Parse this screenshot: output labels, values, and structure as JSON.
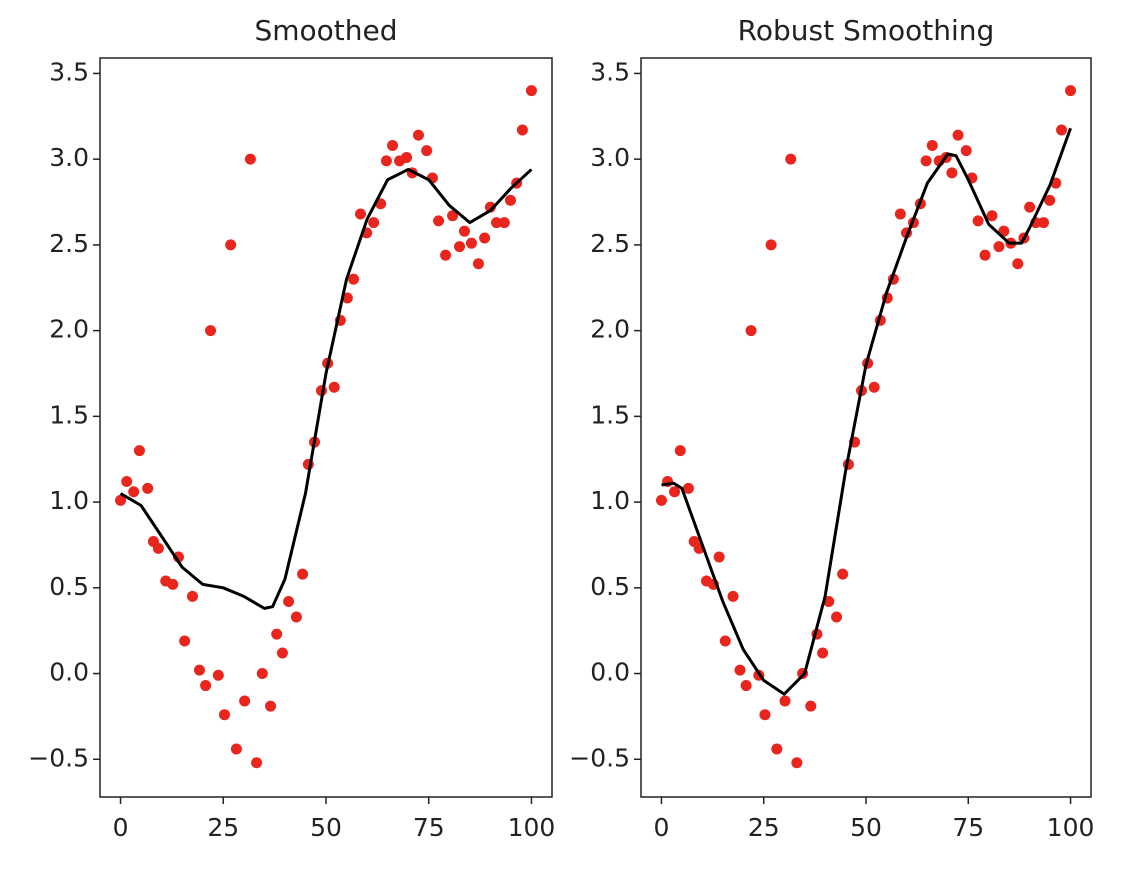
{
  "chart_data": [
    {
      "type": "scatter",
      "title": "Smoothed",
      "xlim": [
        -5,
        105
      ],
      "ylim": [
        -0.72,
        3.59
      ],
      "xticks": [
        0,
        25,
        50,
        75,
        100
      ],
      "yticks": [
        {
          "value": -0.5,
          "label": "−0.5"
        },
        {
          "value": 0,
          "label": "0.0"
        },
        0.5,
        {
          "value": 1,
          "label": "1.0"
        },
        1.5,
        {
          "value": 2,
          "label": "2.0"
        },
        2.5,
        {
          "value": 3,
          "label": "3.0"
        },
        3.5
      ],
      "series": [
        {
          "kind": "scatter",
          "color": "#e8261e",
          "x": [
            0,
            1.5,
            3.2,
            4.6,
            6.6,
            8,
            9.2,
            11,
            12.7,
            14.1,
            15.6,
            17.5,
            19.2,
            20.7,
            21.9,
            23.8,
            25.3,
            26.8,
            28.2,
            30.2,
            31.6,
            33.1,
            34.5,
            36.5,
            38,
            39.4,
            40.9,
            42.8,
            44.3,
            45.7,
            47.2,
            48.9,
            50.4,
            52,
            53.5,
            55.2,
            56.7,
            58.4,
            59.9,
            61.6,
            63.3,
            64.7,
            66.2,
            67.9,
            69.6,
            71,
            72.5,
            74.5,
            75.9,
            77.4,
            79.1,
            80.8,
            82.5,
            83.7,
            85.4,
            87.1,
            88.6,
            90,
            91.5,
            93.4,
            94.9,
            96.4,
            97.8,
            100
          ],
          "values": [
            1.01,
            1.12,
            1.06,
            1.3,
            1.08,
            0.77,
            0.73,
            0.54,
            0.52,
            0.68,
            0.19,
            0.45,
            0.02,
            -0.07,
            2.0,
            -0.01,
            -0.24,
            2.5,
            -0.44,
            -0.16,
            3.0,
            -0.52,
            0.0,
            -0.19,
            0.23,
            0.12,
            0.42,
            0.33,
            0.58,
            1.22,
            1.35,
            1.65,
            1.81,
            1.67,
            2.06,
            2.19,
            2.3,
            2.68,
            2.57,
            2.63,
            2.74,
            2.99,
            3.08,
            2.99,
            3.01,
            2.92,
            3.14,
            3.05,
            2.89,
            2.64,
            2.44,
            2.67,
            2.49,
            2.58,
            2.51,
            2.39,
            2.54,
            2.72,
            2.63,
            2.63,
            2.76,
            2.86,
            3.17,
            3.4
          ]
        },
        {
          "kind": "line",
          "color": "#000000",
          "x": [
            0,
            5,
            10,
            15,
            20,
            25,
            30,
            35,
            37,
            40,
            45,
            50,
            55,
            60,
            65,
            70,
            75,
            80,
            85,
            90,
            95,
            100
          ],
          "values": [
            1.05,
            0.98,
            0.8,
            0.62,
            0.52,
            0.5,
            0.45,
            0.38,
            0.39,
            0.55,
            1.05,
            1.75,
            2.3,
            2.65,
            2.88,
            2.94,
            2.88,
            2.73,
            2.63,
            2.7,
            2.83,
            2.94
          ]
        }
      ]
    },
    {
      "type": "scatter",
      "title": "Robust Smoothing",
      "xlim": [
        -5,
        105
      ],
      "ylim": [
        -0.72,
        3.59
      ],
      "xticks": [
        0,
        25,
        50,
        75,
        100
      ],
      "yticks": [
        {
          "value": -0.5,
          "label": "−0.5"
        },
        {
          "value": 0,
          "label": "0.0"
        },
        0.5,
        {
          "value": 1,
          "label": "1.0"
        },
        1.5,
        {
          "value": 2,
          "label": "2.0"
        },
        2.5,
        {
          "value": 3,
          "label": "3.0"
        },
        3.5
      ],
      "series": [
        {
          "kind": "scatter",
          "color": "#e8261e",
          "x": [
            0,
            1.5,
            3.2,
            4.6,
            6.6,
            8,
            9.2,
            11,
            12.7,
            14.1,
            15.6,
            17.5,
            19.2,
            20.7,
            21.9,
            23.8,
            25.3,
            26.8,
            28.2,
            30.2,
            31.6,
            33.1,
            34.5,
            36.5,
            38,
            39.4,
            40.9,
            42.8,
            44.3,
            45.7,
            47.2,
            48.9,
            50.4,
            52,
            53.5,
            55.2,
            56.7,
            58.4,
            59.9,
            61.6,
            63.3,
            64.7,
            66.2,
            67.9,
            69.6,
            71,
            72.5,
            74.5,
            75.9,
            77.4,
            79.1,
            80.8,
            82.5,
            83.7,
            85.4,
            87.1,
            88.6,
            90,
            91.5,
            93.4,
            94.9,
            96.4,
            97.8,
            100
          ],
          "values": [
            1.01,
            1.12,
            1.06,
            1.3,
            1.08,
            0.77,
            0.73,
            0.54,
            0.52,
            0.68,
            0.19,
            0.45,
            0.02,
            -0.07,
            2.0,
            -0.01,
            -0.24,
            2.5,
            -0.44,
            -0.16,
            3.0,
            -0.52,
            0.0,
            -0.19,
            0.23,
            0.12,
            0.42,
            0.33,
            0.58,
            1.22,
            1.35,
            1.65,
            1.81,
            1.67,
            2.06,
            2.19,
            2.3,
            2.68,
            2.57,
            2.63,
            2.74,
            2.99,
            3.08,
            2.99,
            3.01,
            2.92,
            3.14,
            3.05,
            2.89,
            2.64,
            2.44,
            2.67,
            2.49,
            2.58,
            2.51,
            2.39,
            2.54,
            2.72,
            2.63,
            2.63,
            2.76,
            2.86,
            3.17,
            3.4
          ]
        },
        {
          "kind": "line",
          "color": "#000000",
          "x": [
            0,
            3,
            5,
            10,
            15,
            20,
            25,
            30,
            35,
            40,
            45,
            50,
            55,
            60,
            65,
            70,
            72,
            75,
            80,
            85,
            88,
            90,
            95,
            100
          ],
          "values": [
            1.1,
            1.11,
            1.08,
            0.75,
            0.42,
            0.14,
            -0.04,
            -0.12,
            0.0,
            0.45,
            1.18,
            1.8,
            2.22,
            2.55,
            2.86,
            3.03,
            3.02,
            2.88,
            2.62,
            2.51,
            2.51,
            2.6,
            2.85,
            3.18
          ]
        }
      ]
    }
  ]
}
